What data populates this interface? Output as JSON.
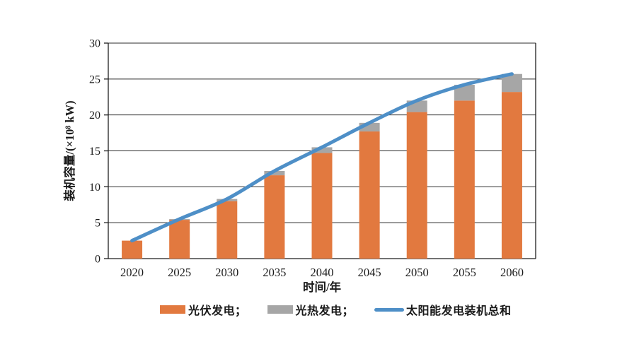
{
  "page": {
    "background_color": "#ffffff"
  },
  "chart_data": {
    "type": "bar",
    "subtype": "stacked-bar-with-line-overlay",
    "categories": [
      "2020",
      "2025",
      "2030",
      "2035",
      "2040",
      "2045",
      "2050",
      "2055",
      "2060"
    ],
    "series": [
      {
        "name": "光伏发电",
        "type": "bar",
        "stack": "solar",
        "color": "#E2793F",
        "values": [
          2.5,
          5.4,
          8.0,
          11.6,
          14.7,
          17.7,
          20.4,
          22.0,
          23.2
        ]
      },
      {
        "name": "光热发电",
        "type": "bar",
        "stack": "solar",
        "color": "#A6A6A6",
        "values": [
          0.0,
          0.1,
          0.3,
          0.6,
          0.8,
          1.2,
          1.6,
          2.2,
          2.5
        ]
      },
      {
        "name": "太阳能发电装机总和",
        "type": "line",
        "color": "#4E8FC7",
        "values": [
          2.5,
          5.5,
          8.3,
          12.2,
          15.5,
          18.9,
          22.0,
          24.2,
          25.7
        ]
      }
    ],
    "title": "",
    "xlabel": "时间/年",
    "ylabel": "装机容量/(×10⁸ kW)",
    "ylim": [
      0,
      30
    ],
    "yticks": [
      0,
      5,
      10,
      15,
      20,
      25,
      30
    ],
    "grid": true,
    "plot_border": true,
    "legend_position": "bottom",
    "legend": [
      {
        "label": "光伏发电；",
        "swatch": "rect",
        "color": "#E2793F"
      },
      {
        "label": "光热发电；",
        "swatch": "rect",
        "color": "#A6A6A6"
      },
      {
        "label": "太阳能发电装机总和",
        "swatch": "line",
        "color": "#4E8FC7"
      }
    ],
    "colors": {
      "axis": "#1f1f1f",
      "grid": "#2b2b2b",
      "tick_text": "#1a1a1a",
      "label_text": "#1a1a1a"
    }
  }
}
